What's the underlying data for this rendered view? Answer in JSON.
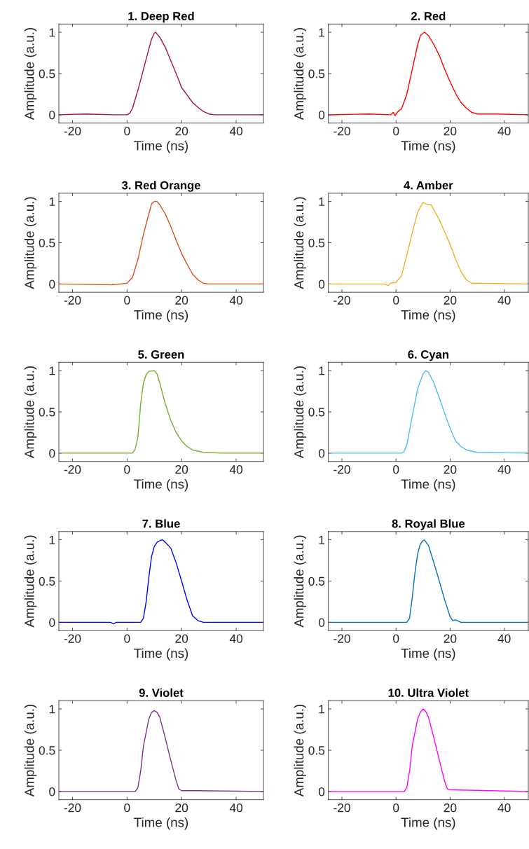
{
  "chart_data": [
    {
      "type": "line",
      "title": "1. Deep Red",
      "xlabel": "Time (ns)",
      "ylabel": "Amplitude (a.u.)",
      "xlim": [
        -25,
        50
      ],
      "ylim": [
        -0.1,
        1.1
      ],
      "xticks": [
        -20,
        0,
        20,
        40
      ],
      "yticks": [
        0,
        0.5,
        1
      ],
      "grid": false,
      "x": [
        -25,
        -15,
        -5,
        0,
        1,
        2,
        4,
        6,
        8,
        9,
        10,
        10.5,
        11,
        12,
        14,
        16,
        18,
        20,
        22,
        24,
        26,
        28,
        30,
        32,
        40,
        50
      ],
      "series": [
        {
          "color": "#a2142f",
          "values": [
            0,
            0.01,
            0,
            0,
            0.02,
            0.08,
            0.3,
            0.55,
            0.8,
            0.92,
            0.99,
            1.0,
            0.98,
            0.94,
            0.82,
            0.66,
            0.5,
            0.33,
            0.24,
            0.15,
            0.09,
            0.04,
            0.01,
            0,
            0,
            0
          ]
        }
      ]
    },
    {
      "type": "line",
      "title": "2. Red",
      "xlabel": "Time (ns)",
      "ylabel": "Amplitude (a.u.)",
      "xlim": [
        -25,
        48.9
      ],
      "ylim": [
        -0.1,
        1.1
      ],
      "xticks": [
        -20,
        0,
        20,
        40
      ],
      "yticks": [
        0,
        0.5,
        1
      ],
      "grid": false,
      "x": [
        -25,
        -10,
        -2,
        -1,
        -0.3,
        0,
        1,
        2,
        4,
        6,
        8,
        9,
        10.5,
        12,
        14,
        16,
        18,
        20,
        22,
        24,
        26,
        28,
        30,
        36,
        48.9
      ],
      "series": [
        {
          "color": "#ff0000",
          "values": [
            0,
            0.01,
            0,
            0.03,
            -0.01,
            0.01,
            0.05,
            0.07,
            0.25,
            0.55,
            0.85,
            0.96,
            1.0,
            0.96,
            0.85,
            0.72,
            0.55,
            0.4,
            0.26,
            0.15,
            0.08,
            0.03,
            0.01,
            0.01,
            0
          ]
        }
      ]
    },
    {
      "type": "line",
      "title": "3. Red Orange",
      "xlabel": "Time (ns)",
      "ylabel": "Amplitude (a.u.)",
      "xlim": [
        -25,
        50
      ],
      "ylim": [
        -0.1,
        1.1
      ],
      "xticks": [
        -20,
        0,
        20,
        40
      ],
      "yticks": [
        0,
        0.5,
        1
      ],
      "grid": false,
      "x": [
        -25,
        -5,
        0,
        2,
        4,
        6,
        8,
        9,
        10,
        11,
        12,
        14,
        16,
        18,
        20,
        22,
        24,
        26,
        28,
        30,
        50
      ],
      "series": [
        {
          "color": "#d95319",
          "values": [
            0,
            -0.01,
            0.01,
            0.08,
            0.3,
            0.6,
            0.85,
            0.97,
            1.0,
            1.0,
            0.96,
            0.85,
            0.7,
            0.53,
            0.37,
            0.24,
            0.12,
            0.05,
            0.01,
            0,
            0
          ]
        }
      ]
    },
    {
      "type": "line",
      "title": "4. Amber",
      "xlabel": "Time (ns)",
      "ylabel": "Amplitude (a.u.)",
      "xlim": [
        -25,
        48.9
      ],
      "ylim": [
        -0.1,
        1.1
      ],
      "xticks": [
        -20,
        0,
        20,
        40
      ],
      "yticks": [
        0,
        0.5,
        1
      ],
      "grid": false,
      "x": [
        -25,
        -4,
        -3,
        -2,
        0,
        2,
        4,
        6,
        8,
        10,
        11,
        12,
        13,
        14,
        16,
        18,
        20,
        22,
        24,
        26,
        28,
        48.9
      ],
      "series": [
        {
          "color": "#edb120",
          "values": [
            0,
            0,
            -0.02,
            0.01,
            0.02,
            0.1,
            0.35,
            0.62,
            0.87,
            0.99,
            0.97,
            0.96,
            0.96,
            0.9,
            0.78,
            0.63,
            0.48,
            0.3,
            0.15,
            0.05,
            0.01,
            0
          ]
        }
      ]
    },
    {
      "type": "line",
      "title": "5. Green",
      "xlabel": "Time (ns)",
      "ylabel": "Amplitude (a.u.)",
      "xlim": [
        -25,
        50
      ],
      "ylim": [
        -0.1,
        1.1
      ],
      "xticks": [
        -20,
        0,
        20,
        40
      ],
      "yticks": [
        0,
        0.5,
        1
      ],
      "grid": false,
      "x": [
        -25,
        2,
        3,
        4,
        5,
        6,
        7,
        8,
        10,
        11,
        12,
        14,
        16,
        18,
        20,
        22,
        24,
        28,
        35,
        50
      ],
      "series": [
        {
          "color": "#77ac30",
          "values": [
            0,
            0,
            0.05,
            0.2,
            0.6,
            0.85,
            0.95,
            0.99,
            1.0,
            0.96,
            0.85,
            0.6,
            0.4,
            0.25,
            0.15,
            0.08,
            0.04,
            0.01,
            0,
            0
          ]
        }
      ]
    },
    {
      "type": "line",
      "title": "6. Cyan",
      "xlabel": "Time (ns)",
      "ylabel": "Amplitude (a.u.)",
      "xlim": [
        -25,
        48.9
      ],
      "ylim": [
        -0.1,
        1.1
      ],
      "xticks": [
        -20,
        0,
        20,
        40
      ],
      "yticks": [
        0,
        0.5,
        1
      ],
      "grid": false,
      "x": [
        -25,
        2,
        3,
        4,
        6,
        8,
        10,
        11,
        12,
        14,
        16,
        18,
        20,
        22,
        24,
        26,
        30,
        48.9
      ],
      "series": [
        {
          "color": "#4dbeee",
          "values": [
            0,
            0,
            0.02,
            0.1,
            0.45,
            0.78,
            0.96,
            1.0,
            0.98,
            0.85,
            0.67,
            0.48,
            0.3,
            0.15,
            0.08,
            0.04,
            0.01,
            0
          ]
        }
      ]
    },
    {
      "type": "line",
      "title": "7. Blue",
      "xlabel": "Time (ns)",
      "ylabel": "Amplitude (a.u.)",
      "xlim": [
        -25,
        50
      ],
      "ylim": [
        -0.1,
        1.1
      ],
      "xticks": [
        -20,
        0,
        20,
        40
      ],
      "yticks": [
        0,
        0.5,
        1
      ],
      "grid": false,
      "x": [
        -25,
        -6,
        -5,
        -4,
        5,
        6,
        7,
        8,
        9,
        10,
        11,
        12,
        13,
        14,
        16,
        18,
        20,
        22,
        24,
        26,
        28,
        50
      ],
      "series": [
        {
          "color": "#0000ff",
          "values": [
            0,
            0,
            -0.02,
            0,
            0,
            0.05,
            0.25,
            0.55,
            0.8,
            0.92,
            0.97,
            0.99,
            1.0,
            0.97,
            0.9,
            0.72,
            0.5,
            0.27,
            0.08,
            0.02,
            0,
            0
          ]
        }
      ]
    },
    {
      "type": "line",
      "title": "8. Royal Blue",
      "xlabel": "Time (ns)",
      "ylabel": "Amplitude (a.u.)",
      "xlim": [
        -25,
        48.9
      ],
      "ylim": [
        -0.1,
        1.1
      ],
      "xticks": [
        -20,
        0,
        20,
        40
      ],
      "yticks": [
        0,
        0.5,
        1
      ],
      "grid": false,
      "x": [
        -25,
        4,
        5,
        6,
        7,
        8,
        9,
        10,
        10.5,
        12,
        14,
        16,
        18,
        20,
        21,
        22,
        24,
        48.9
      ],
      "series": [
        {
          "color": "#0072bd",
          "values": [
            0,
            0,
            0.05,
            0.3,
            0.6,
            0.83,
            0.95,
            0.99,
            1.0,
            0.93,
            0.72,
            0.5,
            0.27,
            0.07,
            0.02,
            0.03,
            0,
            0
          ]
        }
      ]
    },
    {
      "type": "line",
      "title": "9. Violet",
      "xlabel": "Time (ns)",
      "ylabel": "Amplitude (a.u.)",
      "xlim": [
        -25,
        50
      ],
      "ylim": [
        -0.1,
        1.1
      ],
      "xticks": [
        -20,
        0,
        20,
        40
      ],
      "yticks": [
        0,
        0.5,
        1
      ],
      "grid": false,
      "x": [
        -25,
        3,
        4,
        5,
        6,
        8,
        9,
        10,
        11,
        12,
        14,
        16,
        18,
        19,
        20,
        26,
        50
      ],
      "series": [
        {
          "color": "#7e2f8e",
          "values": [
            0,
            0,
            0.05,
            0.25,
            0.55,
            0.88,
            0.96,
            0.98,
            0.96,
            0.9,
            0.65,
            0.38,
            0.13,
            0.03,
            0.01,
            0.01,
            0
          ]
        }
      ]
    },
    {
      "type": "line",
      "title": "10. Ultra Violet",
      "xlabel": "Time (ns)",
      "ylabel": "Amplitude (a.u.)",
      "xlim": [
        -25,
        48.9
      ],
      "ylim": [
        -0.1,
        1.1
      ],
      "xticks": [
        -20,
        0,
        20,
        40
      ],
      "yticks": [
        0,
        0.5,
        1
      ],
      "grid": false,
      "x": [
        -25,
        3,
        4,
        5,
        6,
        8,
        9,
        10,
        11,
        12,
        14,
        16,
        18,
        19,
        20,
        48.9
      ],
      "series": [
        {
          "color": "#ff00ff",
          "values": [
            0,
            0,
            0.05,
            0.25,
            0.55,
            0.88,
            0.96,
            1.0,
            0.97,
            0.9,
            0.65,
            0.38,
            0.12,
            0.03,
            0.02,
            0
          ]
        }
      ]
    }
  ]
}
